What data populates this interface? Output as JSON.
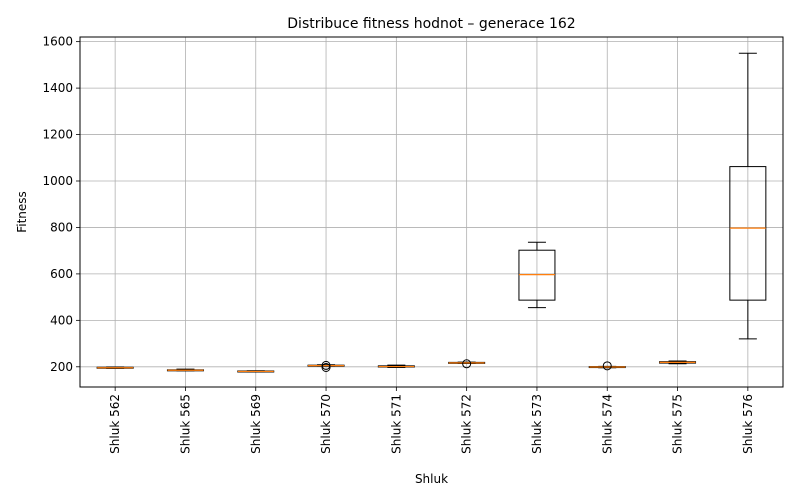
{
  "chart_data": {
    "type": "box",
    "title": "Distribuce fitness hodnot – generace 162",
    "xlabel": "Shluk",
    "ylabel": "Fitness",
    "ylim": [
      113,
      1620
    ],
    "yticks": [
      200,
      400,
      600,
      800,
      1000,
      1200,
      1400,
      1600
    ],
    "grid": true,
    "colors": {
      "box": "#000000",
      "median": "#ff7f0e",
      "grid": "#b0b0b0"
    },
    "categories": [
      "Shluk 562",
      "Shluk 565",
      "Shluk 569",
      "Shluk 570",
      "Shluk 571",
      "Shluk 572",
      "Shluk 573",
      "Shluk 574",
      "Shluk 575",
      "Shluk 576"
    ],
    "boxes": [
      {
        "whisker_low": 193,
        "q1": 194,
        "median": 196,
        "q3": 198,
        "whisker_high": 199,
        "outliers": []
      },
      {
        "whisker_low": 183,
        "q1": 184,
        "median": 185,
        "q3": 187,
        "whisker_high": 190,
        "outliers": []
      },
      {
        "whisker_low": 178,
        "q1": 179,
        "median": 180,
        "q3": 182,
        "whisker_high": 183,
        "outliers": []
      },
      {
        "whisker_low": 203,
        "q1": 204,
        "median": 205,
        "q3": 207,
        "whisker_high": 209,
        "outliers": [
          197,
          206
        ]
      },
      {
        "whisker_low": 197,
        "q1": 199,
        "median": 201,
        "q3": 204,
        "whisker_high": 207,
        "outliers": []
      },
      {
        "whisker_low": 214,
        "q1": 215,
        "median": 217,
        "q3": 219,
        "whisker_high": 220,
        "outliers": [
          213
        ]
      },
      {
        "whisker_low": 455,
        "q1": 487,
        "median": 597,
        "q3": 702,
        "whisker_high": 736,
        "outliers": []
      },
      {
        "whisker_low": 196,
        "q1": 197,
        "median": 199,
        "q3": 201,
        "whisker_high": 202,
        "outliers": [
          204
        ]
      },
      {
        "whisker_low": 213,
        "q1": 216,
        "median": 219,
        "q3": 222,
        "whisker_high": 225,
        "outliers": []
      },
      {
        "whisker_low": 320,
        "q1": 487,
        "median": 797,
        "q3": 1062,
        "whisker_high": 1550,
        "outliers": []
      }
    ]
  }
}
